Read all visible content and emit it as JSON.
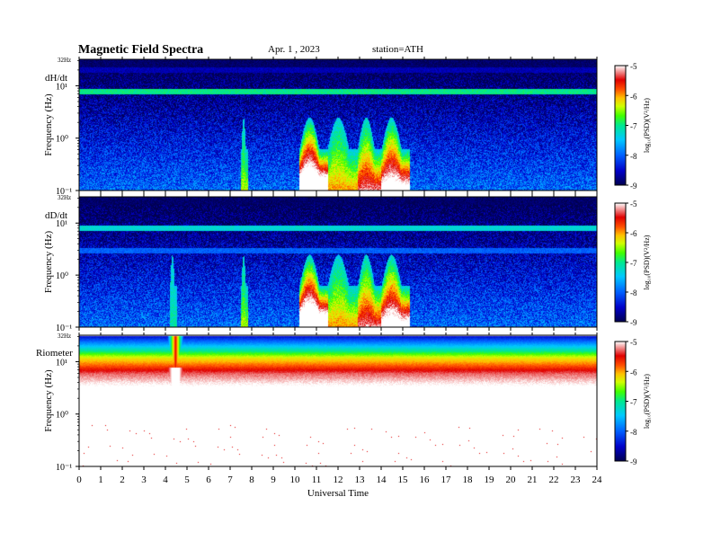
{
  "header": {
    "title": "Magnetic  Field  Spectra",
    "date": "Apr. 1  , 2023",
    "station": "station=ATH"
  },
  "colors": {
    "scale": [
      "#000060",
      "#0000c8",
      "#0050ff",
      "#00c8ff",
      "#00e890",
      "#40ff00",
      "#d0ff00",
      "#ffd000",
      "#ff6000",
      "#e00000",
      "#ffffff"
    ]
  },
  "chart_data": [
    {
      "type": "heatmap",
      "panel_label": "dH/dt",
      "ylabel": "Frequency  (Hz)",
      "top_label": "32Hz",
      "ytick_labels": [
        "10¹",
        "10⁰",
        "10⁻¹"
      ],
      "yticks": [
        10,
        1,
        0.1
      ],
      "ylim": [
        0.1,
        32
      ],
      "xlim": [
        0,
        24
      ],
      "colorbar": {
        "label": "log₁₀(PSD)(V²/Hz)",
        "range": [
          -9,
          -5
        ],
        "ticks": [
          "-5",
          "-6",
          "-7",
          "-8",
          "-9"
        ]
      },
      "events": [
        {
          "start": 7.5,
          "end": 7.8,
          "peak_log_psd": -6.8
        },
        {
          "start": 10.2,
          "end": 11.5,
          "peak_log_psd": -5.0
        },
        {
          "start": 11.5,
          "end": 12.9,
          "peak_log_psd": -6.5
        },
        {
          "start": 12.9,
          "end": 14.0,
          "peak_log_psd": -6.0
        },
        {
          "start": 14.0,
          "end": 15.3,
          "peak_log_psd": -5.5
        }
      ],
      "bands": [
        {
          "freq_hz": 8,
          "log_psd": -7.0
        },
        {
          "freq_hz": 20,
          "log_psd": -8.6
        }
      ]
    },
    {
      "type": "heatmap",
      "panel_label": "dD/dt",
      "ylabel": "Frequency  (Hz)",
      "top_label": "32Hz",
      "ytick_labels": [
        "10¹",
        "10⁰",
        "10⁻¹"
      ],
      "yticks": [
        10,
        1,
        0.1
      ],
      "ylim": [
        0.1,
        32
      ],
      "xlim": [
        0,
        24
      ],
      "colorbar": {
        "label": "log₁₀(PSD)(V²/Hz)",
        "range": [
          -9,
          -5
        ],
        "ticks": [
          "-5",
          "-6",
          "-7",
          "-8",
          "-9"
        ]
      },
      "events": [
        {
          "start": 4.2,
          "end": 4.5,
          "peak_log_psd": -7.2
        },
        {
          "start": 7.5,
          "end": 7.8,
          "peak_log_psd": -6.8
        },
        {
          "start": 10.2,
          "end": 11.5,
          "peak_log_psd": -5.0
        },
        {
          "start": 11.5,
          "end": 12.9,
          "peak_log_psd": -6.5
        },
        {
          "start": 12.9,
          "end": 14.0,
          "peak_log_psd": -6.0
        },
        {
          "start": 14.0,
          "end": 15.3,
          "peak_log_psd": -5.5
        }
      ],
      "bands": [
        {
          "freq_hz": 8,
          "log_psd": -7.3
        },
        {
          "freq_hz": 3,
          "log_psd": -8.0
        }
      ]
    },
    {
      "type": "heatmap",
      "panel_label": "Riometer",
      "ylabel": "Frequency  (Hz)",
      "top_label": "32Hz",
      "ytick_labels": [
        "10¹",
        "10⁰",
        "10⁻¹"
      ],
      "yticks": [
        10,
        1,
        0.1
      ],
      "ylim": [
        0.1,
        32
      ],
      "xlim": [
        0,
        24
      ],
      "xlabel": "Universal Time",
      "xtick_labels": [
        "0",
        "1",
        "2",
        "3",
        "4",
        "5",
        "6",
        "7",
        "8",
        "9",
        "10",
        "11",
        "12",
        "13",
        "14",
        "15",
        "16",
        "17",
        "18",
        "19",
        "20",
        "21",
        "22",
        "23",
        "24"
      ],
      "colorbar": {
        "label": "log₁₀(PSD)(V²/Hz)",
        "range": [
          -9,
          -5
        ],
        "ticks": [
          "-5",
          "-6",
          "-7",
          "-8",
          "-9"
        ]
      },
      "events": [
        {
          "start": 4.1,
          "end": 4.8,
          "peak_log_psd": -4.5
        }
      ],
      "gradient": [
        {
          "freq_hz": 32,
          "log_psd": -8.5
        },
        {
          "freq_hz": 20,
          "log_psd": -7.5
        },
        {
          "freq_hz": 12,
          "log_psd": -6.3
        },
        {
          "freq_hz": 6,
          "log_psd": -5.3
        },
        {
          "freq_hz": 2,
          "log_psd": -4.6
        },
        {
          "freq_hz": 0.1,
          "log_psd": -4.5
        }
      ]
    }
  ]
}
